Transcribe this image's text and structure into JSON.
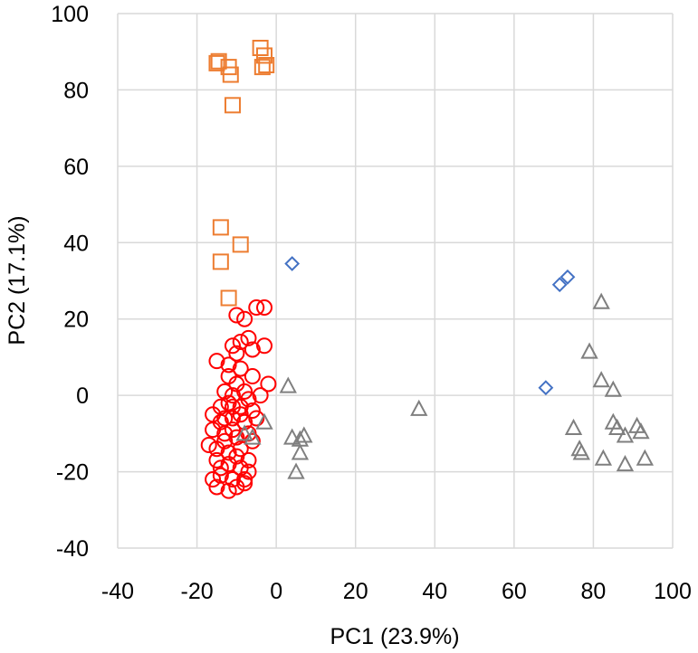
{
  "chart_data": {
    "type": "scatter",
    "title": "",
    "xlabel": "PC1 (23.9%)",
    "ylabel": "PC2 (17.1%)",
    "xlim": [
      -40,
      100
    ],
    "ylim": [
      -40,
      100
    ],
    "xticks": [
      -40,
      -20,
      0,
      20,
      40,
      60,
      80,
      100
    ],
    "yticks": [
      -40,
      -20,
      0,
      20,
      40,
      60,
      80,
      100
    ],
    "grid": true,
    "legend": "none",
    "series": [
      {
        "name": "orange squares",
        "marker": "square",
        "color": "#ed7d31",
        "points": [
          [
            -15,
            87
          ],
          [
            -14.5,
            87.5
          ],
          [
            -12,
            86
          ],
          [
            -11.5,
            84
          ],
          [
            -4,
            91
          ],
          [
            -3,
            89
          ],
          [
            -3.5,
            86
          ],
          [
            -2.5,
            86.5
          ],
          [
            -11,
            76
          ],
          [
            -14,
            44
          ],
          [
            -9,
            39.5
          ],
          [
            -14,
            35
          ],
          [
            -12,
            25.5
          ]
        ]
      },
      {
        "name": "blue diamonds",
        "marker": "diamond",
        "color": "#4472c4",
        "points": [
          [
            4,
            34.5
          ],
          [
            71.5,
            29
          ],
          [
            73.5,
            31
          ],
          [
            68,
            2
          ]
        ]
      },
      {
        "name": "red circles",
        "marker": "circle",
        "color": "#ff0000",
        "points": [
          [
            -10,
            21
          ],
          [
            -8,
            20
          ],
          [
            -7,
            15
          ],
          [
            -11,
            13
          ],
          [
            -9,
            14
          ],
          [
            -10,
            11
          ],
          [
            -6,
            12
          ],
          [
            -3,
            23
          ],
          [
            -5,
            23
          ],
          [
            -3,
            13
          ],
          [
            -15,
            9
          ],
          [
            -9,
            7
          ],
          [
            -6,
            5
          ],
          [
            -12,
            5
          ],
          [
            -10,
            3
          ],
          [
            -8,
            1
          ],
          [
            -4,
            0
          ],
          [
            -7,
            -1
          ],
          [
            -13,
            1
          ],
          [
            -11,
            0
          ],
          [
            -2,
            3
          ],
          [
            -14,
            -3
          ],
          [
            -12,
            -2
          ],
          [
            -9,
            -3
          ],
          [
            -6,
            -4
          ],
          [
            -16,
            -5
          ],
          [
            -14,
            -7
          ],
          [
            -11,
            -6
          ],
          [
            -8,
            -7
          ],
          [
            -5,
            -6
          ],
          [
            -16,
            -9
          ],
          [
            -13,
            -10
          ],
          [
            -10,
            -11
          ],
          [
            -7,
            -10
          ],
          [
            -17,
            -13
          ],
          [
            -15,
            -14
          ],
          [
            -12,
            -15
          ],
          [
            -9,
            -14
          ],
          [
            -6,
            -12
          ],
          [
            -15,
            -17
          ],
          [
            -12,
            -18
          ],
          [
            -9,
            -19
          ],
          [
            -7,
            -17
          ],
          [
            -16,
            -22
          ],
          [
            -14,
            -21
          ],
          [
            -11,
            -22
          ],
          [
            -8,
            -22
          ],
          [
            -15,
            -24
          ],
          [
            -12,
            -25
          ],
          [
            -10,
            -24
          ],
          [
            -8,
            -23
          ],
          [
            -13,
            -12
          ],
          [
            -11,
            -9
          ],
          [
            -9,
            -5
          ],
          [
            -12,
            8
          ],
          [
            -10,
            -16
          ],
          [
            -14,
            -19
          ],
          [
            -7,
            -20
          ],
          [
            -11,
            -3
          ],
          [
            -13,
            -6
          ]
        ]
      },
      {
        "name": "gray triangles",
        "marker": "triangle",
        "color": "#7f7f7f",
        "points": [
          [
            3,
            2.5
          ],
          [
            -3,
            -7
          ],
          [
            -8,
            -10
          ],
          [
            -6,
            -11
          ],
          [
            4,
            -11
          ],
          [
            6,
            -11.5
          ],
          [
            7,
            -10.5
          ],
          [
            6,
            -15
          ],
          [
            5,
            -20
          ],
          [
            36,
            -3.5
          ],
          [
            82,
            24.5
          ],
          [
            79,
            11.5
          ],
          [
            82,
            4
          ],
          [
            85,
            1.5
          ],
          [
            75,
            -8.5
          ],
          [
            85,
            -7
          ],
          [
            86,
            -8.5
          ],
          [
            91,
            -8
          ],
          [
            92,
            -9.5
          ],
          [
            76.5,
            -14
          ],
          [
            77,
            -15
          ],
          [
            82.5,
            -16.5
          ],
          [
            88,
            -10.5
          ],
          [
            88,
            -18
          ],
          [
            93,
            -16.5
          ]
        ]
      }
    ]
  }
}
